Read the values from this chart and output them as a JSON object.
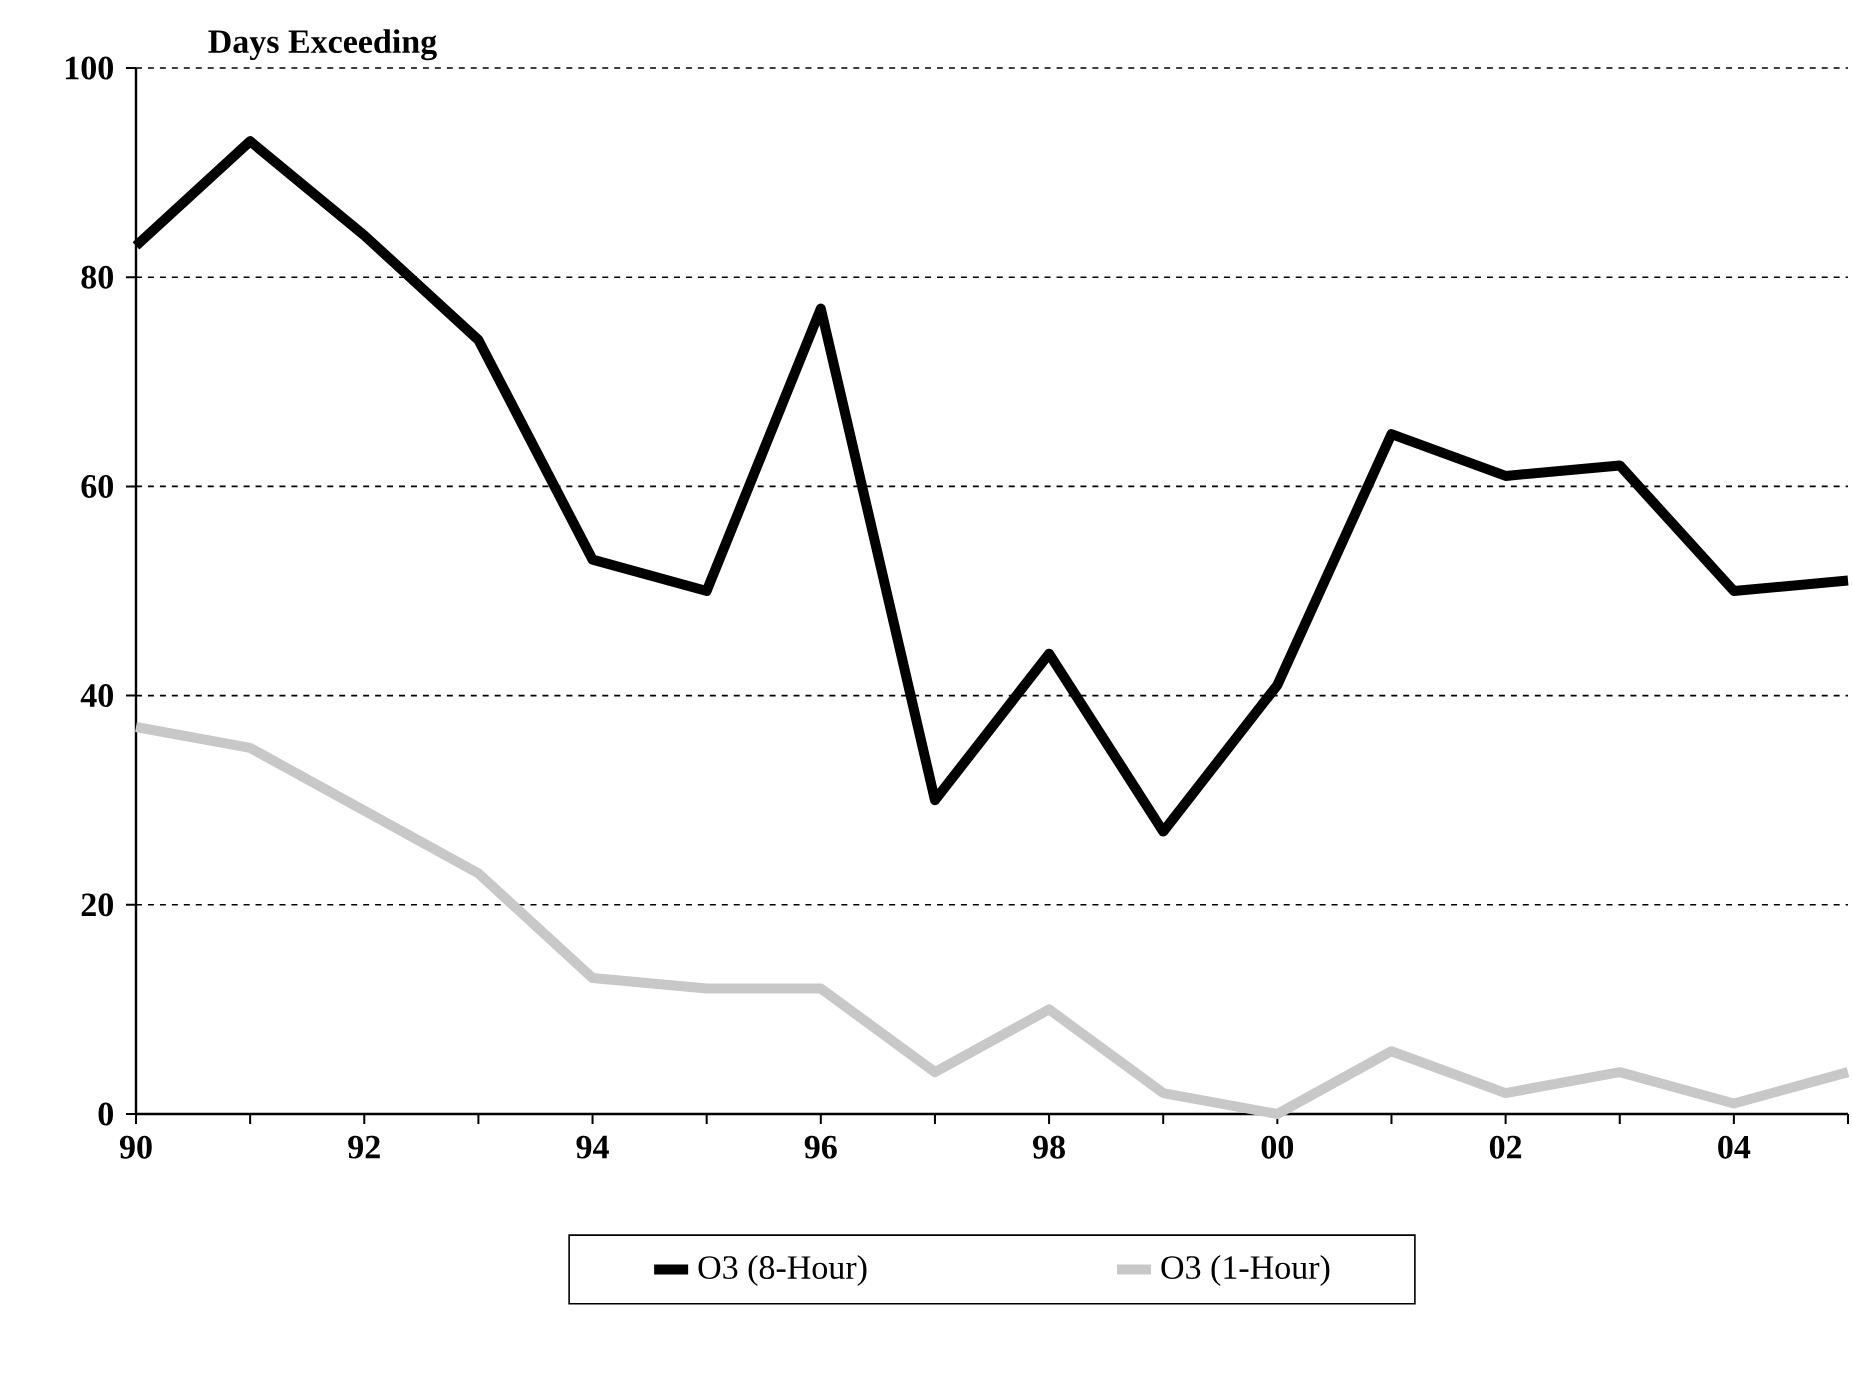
{
  "chart_data": {
    "type": "line",
    "ylabel": "Days Exceeding",
    "categories": [
      "90",
      null,
      "92",
      null,
      "94",
      null,
      "96",
      null,
      "98",
      null,
      "00",
      null,
      "02",
      null,
      "04",
      null
    ],
    "series": [
      {
        "name": "O3 (8-Hour)",
        "color": "#000000",
        "values": [
          83,
          93,
          84,
          74,
          53,
          50,
          77,
          30,
          44,
          27,
          41,
          65,
          61,
          62,
          50,
          51
        ]
      },
      {
        "name": "O3 (1-Hour)",
        "color": "#c8c8c8",
        "values": [
          37,
          35,
          29,
          23,
          13,
          12,
          12,
          4,
          10,
          2,
          0,
          6,
          2,
          4,
          1,
          4
        ]
      }
    ],
    "ylim": [
      0,
      100
    ],
    "yticks": [
      0,
      20,
      40,
      60,
      80,
      100
    ],
    "grid": "y",
    "legend": "bottom",
    "marker": "none",
    "line_style": "solid"
  }
}
